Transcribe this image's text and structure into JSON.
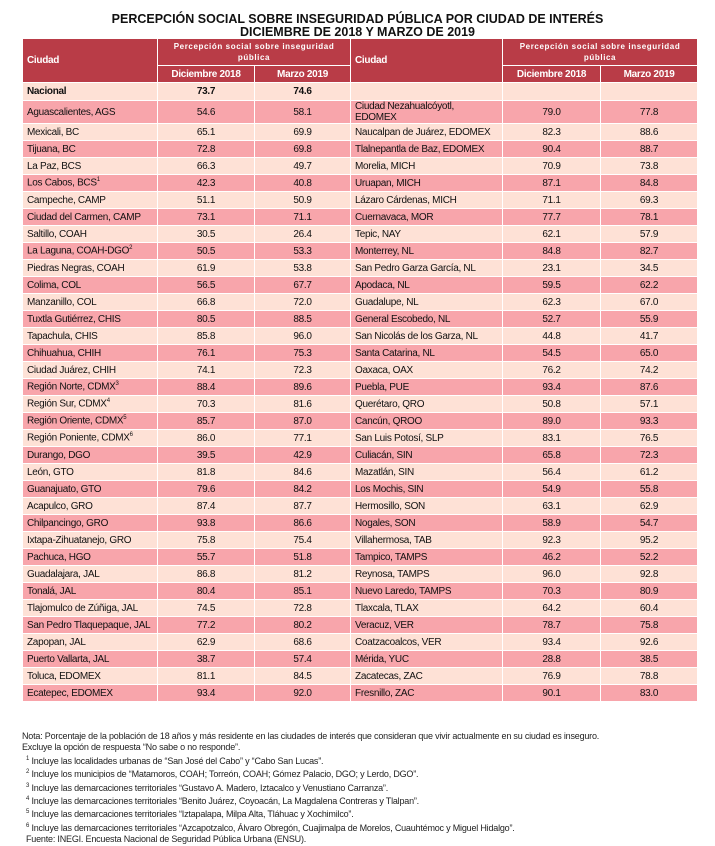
{
  "title_line1": "PERCEPCIÓN SOCIAL SOBRE INSEGURIDAD PÚBLICA POR CIUDAD DE INTERÉS",
  "title_line2": "DICIEMBRE DE 2018 Y MARZO DE 2019",
  "header": {
    "city": "Ciudad",
    "group": "Percepción social sobre inseguridad pública",
    "col1": "Diciembre 2018",
    "col2": "Marzo 2019"
  },
  "national": {
    "city": "Nacional",
    "dic": "73.7",
    "mar": "74.6"
  },
  "colors": {
    "header": "#b93c47",
    "row_dark": "#f8a5ab",
    "row_light": "#fee1d6"
  },
  "left_rows": [
    {
      "city": "Aguascalientes, AGS",
      "dic": "54.6",
      "mar": "58.1"
    },
    {
      "city": "Mexicali, BC",
      "dic": "65.1",
      "mar": "69.9"
    },
    {
      "city": "Tijuana, BC",
      "dic": "72.8",
      "mar": "69.8"
    },
    {
      "city": "La Paz, BCS",
      "dic": "66.3",
      "mar": "49.7"
    },
    {
      "city": "Los Cabos, BCS",
      "sup": "1",
      "dic": "42.3",
      "mar": "40.8"
    },
    {
      "city": "Campeche, CAMP",
      "dic": "51.1",
      "mar": "50.9"
    },
    {
      "city": "Ciudad del Carmen, CAMP",
      "dic": "73.1",
      "mar": "71.1"
    },
    {
      "city": "Saltillo, COAH",
      "dic": "30.5",
      "mar": "26.4"
    },
    {
      "city": "La Laguna, COAH-DGO",
      "sup": "2",
      "dic": "50.5",
      "mar": "53.3"
    },
    {
      "city": "Piedras Negras, COAH",
      "dic": "61.9",
      "mar": "53.8"
    },
    {
      "city": "Colima, COL",
      "dic": "56.5",
      "mar": "67.7"
    },
    {
      "city": "Manzanillo, COL",
      "dic": "66.8",
      "mar": "72.0"
    },
    {
      "city": "Tuxtla Gutiérrez, CHIS",
      "dic": "80.5",
      "mar": "88.5"
    },
    {
      "city": "Tapachula, CHIS",
      "dic": "85.8",
      "mar": "96.0"
    },
    {
      "city": "Chihuahua, CHIH",
      "dic": "76.1",
      "mar": "75.3"
    },
    {
      "city": "Ciudad Juárez, CHIH",
      "dic": "74.1",
      "mar": "72.3"
    },
    {
      "city": "Región Norte, CDMX",
      "sup": "3",
      "dic": "88.4",
      "mar": "89.6"
    },
    {
      "city": "Región Sur, CDMX",
      "sup": "4",
      "dic": "70.3",
      "mar": "81.6"
    },
    {
      "city": "Región Oriente, CDMX",
      "sup": "5",
      "dic": "85.7",
      "mar": "87.0"
    },
    {
      "city": "Región Poniente, CDMX",
      "sup": "6",
      "dic": "86.0",
      "mar": "77.1"
    },
    {
      "city": "Durango, DGO",
      "dic": "39.5",
      "mar": "42.9"
    },
    {
      "city": "León, GTO",
      "dic": "81.8",
      "mar": "84.6"
    },
    {
      "city": "Guanajuato, GTO",
      "dic": "79.6",
      "mar": "84.2"
    },
    {
      "city": "Acapulco, GRO",
      "dic": "87.4",
      "mar": "87.7"
    },
    {
      "city": "Chilpancingo, GRO",
      "dic": "93.8",
      "mar": "86.6"
    },
    {
      "city": "Ixtapa-Zihuatanejo, GRO",
      "dic": "75.8",
      "mar": "75.4"
    },
    {
      "city": "Pachuca, HGO",
      "dic": "55.7",
      "mar": "51.8"
    },
    {
      "city": "Guadalajara, JAL",
      "dic": "86.8",
      "mar": "81.2"
    },
    {
      "city": "Tonalá, JAL",
      "dic": "80.4",
      "mar": "85.1"
    },
    {
      "city": "Tlajomulco de Zúñiga, JAL",
      "dic": "74.5",
      "mar": "72.8"
    },
    {
      "city": "San Pedro Tlaquepaque, JAL",
      "dic": "77.2",
      "mar": "80.2"
    },
    {
      "city": "Zapopan, JAL",
      "dic": "62.9",
      "mar": "68.6"
    },
    {
      "city": "Puerto Vallarta, JAL",
      "dic": "38.7",
      "mar": "57.4"
    },
    {
      "city": "Toluca, EDOMEX",
      "dic": "81.1",
      "mar": "84.5"
    },
    {
      "city": "Ecatepec, EDOMEX",
      "dic": "93.4",
      "mar": "92.0"
    }
  ],
  "right_rows": [
    {
      "city": "Ciudad Nezahualcóyotl, EDOMEX",
      "dic": "79.0",
      "mar": "77.8"
    },
    {
      "city": "Naucalpan de Juárez, EDOMEX",
      "dic": "82.3",
      "mar": "88.6"
    },
    {
      "city": "Tlalnepantla de Baz, EDOMEX",
      "dic": "90.4",
      "mar": "88.7"
    },
    {
      "city": "Morelia, MICH",
      "dic": "70.9",
      "mar": "73.8"
    },
    {
      "city": "Uruapan, MICH",
      "dic": "87.1",
      "mar": "84.8"
    },
    {
      "city": "Lázaro Cárdenas, MICH",
      "dic": "71.1",
      "mar": "69.3"
    },
    {
      "city": "Cuernavaca, MOR",
      "dic": "77.7",
      "mar": "78.1"
    },
    {
      "city": "Tepic, NAY",
      "dic": "62.1",
      "mar": "57.9"
    },
    {
      "city": "Monterrey, NL",
      "dic": "84.8",
      "mar": "82.7"
    },
    {
      "city": "San Pedro Garza García, NL",
      "dic": "23.1",
      "mar": "34.5"
    },
    {
      "city": "Apodaca, NL",
      "dic": "59.5",
      "mar": "62.2"
    },
    {
      "city": "Guadalupe, NL",
      "dic": "62.3",
      "mar": "67.0"
    },
    {
      "city": "General Escobedo, NL",
      "dic": "52.7",
      "mar": "55.9"
    },
    {
      "city": "San Nicolás de los Garza, NL",
      "dic": "44.8",
      "mar": "41.7"
    },
    {
      "city": "Santa Catarina, NL",
      "dic": "54.5",
      "mar": "65.0"
    },
    {
      "city": "Oaxaca, OAX",
      "dic": "76.2",
      "mar": "74.2"
    },
    {
      "city": "Puebla, PUE",
      "dic": "93.4",
      "mar": "87.6"
    },
    {
      "city": "Querétaro, QRO",
      "dic": "50.8",
      "mar": "57.1"
    },
    {
      "city": "Cancún, QROO",
      "dic": "89.0",
      "mar": "93.3"
    },
    {
      "city": "San Luis Potosí, SLP",
      "dic": "83.1",
      "mar": "76.5"
    },
    {
      "city": "Culiacán, SIN",
      "dic": "65.8",
      "mar": "72.3"
    },
    {
      "city": "Mazatlán, SIN",
      "dic": "56.4",
      "mar": "61.2"
    },
    {
      "city": "Los Mochis, SIN",
      "dic": "54.9",
      "mar": "55.8"
    },
    {
      "city": "Hermosillo, SON",
      "dic": "63.1",
      "mar": "62.9"
    },
    {
      "city": "Nogales, SON",
      "dic": "58.9",
      "mar": "54.7"
    },
    {
      "city": "Villahermosa, TAB",
      "dic": "92.3",
      "mar": "95.2"
    },
    {
      "city": "Tampico, TAMPS",
      "dic": "46.2",
      "mar": "52.2"
    },
    {
      "city": "Reynosa, TAMPS",
      "dic": "96.0",
      "mar": "92.8"
    },
    {
      "city": "Nuevo Laredo, TAMPS",
      "dic": "70.3",
      "mar": "80.9"
    },
    {
      "city": "Tlaxcala, TLAX",
      "dic": "64.2",
      "mar": "60.4"
    },
    {
      "city": "Veracuz, VER",
      "dic": "78.7",
      "mar": "75.8"
    },
    {
      "city": "Coatzacoalcos, VER",
      "dic": "93.4",
      "mar": "92.6"
    },
    {
      "city": "Mérida, YUC",
      "dic": "28.8",
      "mar": "38.5"
    },
    {
      "city": "Zacatecas, ZAC",
      "dic": "76.9",
      "mar": "78.8"
    },
    {
      "city": "Fresnillo, ZAC",
      "dic": "90.1",
      "mar": "83.0"
    }
  ],
  "notes": {
    "nota1": "Nota: Porcentaje de la población de 18 años y más residente en las ciudades de interés que consideran que vivir actualmente en su ciudad es inseguro.",
    "nota2": "Excluye la opción de respuesta “No sabe o no responde”.",
    "footnotes": [
      {
        "n": "1",
        "text": " Incluye las localidades urbanas de “San José del Cabo” y “Cabo San Lucas”."
      },
      {
        "n": "2",
        "text": " Incluye los municipios de “Matamoros, COAH; Torreón, COAH; Gómez Palacio, DGO; y Lerdo, DGO”."
      },
      {
        "n": "3",
        "text": " Incluye las demarcaciones territoriales “Gustavo A. Madero, Iztacalco y Venustiano Carranza”."
      },
      {
        "n": "4",
        "text": " Incluye las demarcaciones territoriales “Benito Juárez, Coyoacán, La Magdalena Contreras y Tlalpan”."
      },
      {
        "n": "5",
        "text": " Incluye las demarcaciones territoriales “Iztapalapa, Milpa Alta, Tláhuac y Xochimilco”."
      },
      {
        "n": "6",
        "text": " Incluye las demarcaciones territoriales “Azcapotzalco, Álvaro Obregón, Cuajimalpa de Morelos, Cuauhtémoc y Miguel Hidalgo”."
      }
    ],
    "fuente": "Fuente: INEGI. Encuesta Nacional de Seguridad Pública Urbana (ENSU)."
  }
}
